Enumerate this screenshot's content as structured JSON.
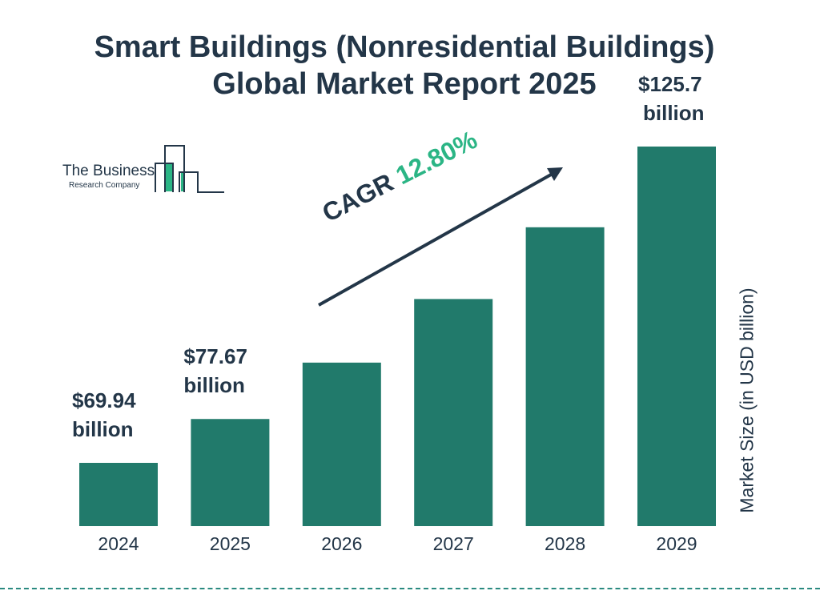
{
  "title_line1": "Smart Buildings (Nonresidential Buildings)",
  "title_line2": "Global Market Report 2025",
  "logo": {
    "line1": "The Business",
    "line2": "Research Company"
  },
  "colors": {
    "bar": "#217a6b",
    "text": "#233648",
    "accent": "#2bb585",
    "dash": "#2a8a80"
  },
  "cagr": {
    "label": "CAGR",
    "value": "12.80%"
  },
  "chart_data": {
    "type": "bar",
    "categories": [
      "2024",
      "2025",
      "2026",
      "2027",
      "2028",
      "2029"
    ],
    "values": [
      69.94,
      77.67,
      87.61,
      98.82,
      111.47,
      125.7
    ],
    "data_labels": [
      {
        "index": 0,
        "value": "$69.94",
        "unit": "billion"
      },
      {
        "index": 1,
        "value": "$77.67",
        "unit": "billion"
      },
      {
        "index": 5,
        "value": "$125.7",
        "unit": "billion"
      }
    ],
    "ylabel": "Market Size (in USD billion)",
    "xlabel": "",
    "grid": false
  }
}
